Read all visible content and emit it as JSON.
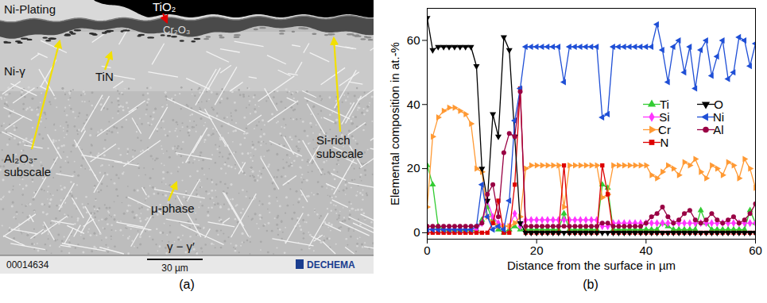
{
  "micrograph": {
    "labels": [
      "Ni-Plating",
      "TiO₂",
      "Cr₂O₃",
      "Ni-γ",
      "TiN",
      "Al₂O₃-subscale",
      "Si-rich subscale",
      "μ-phase",
      "γ − γ′"
    ],
    "scale_bar": "30 µm",
    "info_bar": [
      "00014634",
      "DECHEMA"
    ]
  },
  "captions": [
    "(a)",
    "(b)"
  ],
  "chart_data": {
    "type": "line",
    "x_label": "Distance from the surface in µm",
    "y_label": "Elemental composition in at.-%",
    "xlim": [
      0,
      60
    ],
    "xticks": [
      0,
      20,
      40,
      60
    ],
    "ylim": [
      -2,
      70
    ],
    "yticks": [
      0,
      20,
      40,
      60
    ],
    "legend": "right",
    "x": [
      0,
      1,
      2,
      3,
      4,
      5,
      6,
      7,
      8,
      9,
      10,
      11,
      12,
      13,
      14,
      15,
      16,
      17,
      18,
      19,
      20,
      21,
      22,
      23,
      24,
      25,
      26,
      27,
      28,
      29,
      30,
      31,
      32,
      33,
      34,
      35,
      36,
      37,
      38,
      39,
      40,
      41,
      42,
      43,
      44,
      45,
      46,
      47,
      48,
      49,
      50,
      51,
      52,
      53,
      54,
      55,
      56,
      57,
      58,
      59,
      60
    ],
    "series": [
      {
        "name": "Ti",
        "color": "#33cc33",
        "marker": "triangle-up",
        "values": [
          21,
          15,
          2,
          1,
          1,
          1,
          1,
          1,
          1,
          1,
          4,
          8,
          4,
          1,
          0,
          1,
          2,
          1,
          1,
          1,
          1,
          1,
          1,
          1,
          1,
          6,
          1,
          1,
          1,
          1,
          1,
          1,
          15,
          14,
          1,
          1,
          1,
          1,
          1,
          1,
          1,
          1,
          1,
          3,
          2,
          1,
          1,
          1,
          1,
          1,
          7,
          3,
          1,
          1,
          1,
          1,
          1,
          1,
          1,
          7,
          3
        ]
      },
      {
        "name": "Si",
        "color": "#ff33ff",
        "marker": "diamond",
        "values": [
          1,
          1,
          1,
          1,
          1,
          1,
          1,
          1,
          1,
          1,
          3,
          10,
          5,
          3,
          2,
          2,
          6,
          2,
          4,
          4,
          4,
          4,
          4,
          4,
          4,
          4,
          4,
          4,
          4,
          4,
          4,
          4,
          2,
          2,
          3,
          3,
          3,
          3,
          3,
          3,
          3,
          3,
          3,
          3,
          3,
          3,
          3,
          3,
          3,
          3,
          3,
          3,
          3,
          3,
          3,
          3,
          3,
          3,
          3,
          3,
          3
        ]
      },
      {
        "name": "Cr",
        "color": "#ff9933",
        "marker": "triangle-right",
        "values": [
          8,
          30,
          36,
          38,
          39,
          39,
          38,
          37,
          34,
          20,
          19,
          5,
          3,
          2,
          2,
          2,
          3,
          5,
          20,
          21,
          21,
          21,
          21,
          21,
          21,
          8,
          21,
          21,
          21,
          21,
          21,
          21,
          11,
          12,
          21,
          21,
          21,
          21,
          21,
          21,
          21,
          18,
          17,
          19,
          21,
          20,
          18,
          22,
          21,
          23,
          19,
          17,
          21,
          20,
          18,
          22,
          21,
          17,
          23,
          20,
          14
        ]
      },
      {
        "name": "N",
        "color": "#dd0000",
        "marker": "square",
        "values": [
          0,
          0,
          0,
          0,
          0,
          0,
          0,
          0,
          0,
          0,
          0,
          0,
          3,
          10,
          0,
          0,
          15,
          45,
          0,
          0,
          0,
          0,
          0,
          0,
          0,
          21,
          0,
          0,
          0,
          0,
          0,
          0,
          21,
          12,
          0,
          0,
          0,
          0,
          0,
          0,
          0,
          0,
          0,
          0,
          0,
          0,
          0,
          0,
          0,
          0,
          0,
          0,
          0,
          0,
          0,
          0,
          0,
          0,
          0,
          0,
          0
        ]
      },
      {
        "name": "O",
        "color": "#000000",
        "marker": "triangle-down",
        "values": [
          67,
          57,
          58,
          58,
          58,
          58,
          58,
          58,
          58,
          52,
          20,
          10,
          37,
          30,
          61,
          57,
          30,
          3,
          0,
          0,
          0,
          0,
          0,
          0,
          0,
          0,
          0,
          0,
          0,
          0,
          0,
          0,
          0,
          0,
          0,
          0,
          0,
          0,
          0,
          0,
          0,
          0,
          0,
          0,
          0,
          0,
          0,
          0,
          0,
          0,
          0,
          0,
          0,
          0,
          0,
          0,
          0,
          0,
          0,
          0,
          0
        ]
      },
      {
        "name": "Ni",
        "color": "#1f4fd6",
        "marker": "triangle-left",
        "values": [
          1,
          1,
          1,
          1,
          1,
          1,
          1,
          1,
          1,
          2,
          15,
          5,
          1,
          2,
          1,
          10,
          35,
          45,
          58,
          58,
          58,
          58,
          58,
          58,
          58,
          47,
          58,
          58,
          58,
          58,
          58,
          58,
          36,
          37,
          58,
          58,
          58,
          58,
          58,
          58,
          58,
          58,
          65,
          57,
          47,
          58,
          60,
          50,
          58,
          45,
          57,
          60,
          49,
          55,
          60,
          48,
          50,
          61,
          60,
          52,
          59
        ]
      },
      {
        "name": "Al",
        "color": "#990044",
        "marker": "circle",
        "values": [
          2,
          2,
          2,
          2,
          2,
          2,
          2,
          2,
          2,
          2,
          3,
          12,
          15,
          5,
          25,
          31,
          30,
          44,
          2,
          2,
          2,
          2,
          2,
          2,
          2,
          2,
          2,
          2,
          2,
          2,
          2,
          2,
          3,
          3,
          2,
          2,
          2,
          2,
          2,
          2,
          3,
          5,
          6,
          8,
          5,
          3,
          4,
          6,
          7,
          4,
          3,
          4,
          6,
          4,
          3,
          4,
          5,
          3,
          4,
          6,
          9
        ]
      }
    ]
  }
}
